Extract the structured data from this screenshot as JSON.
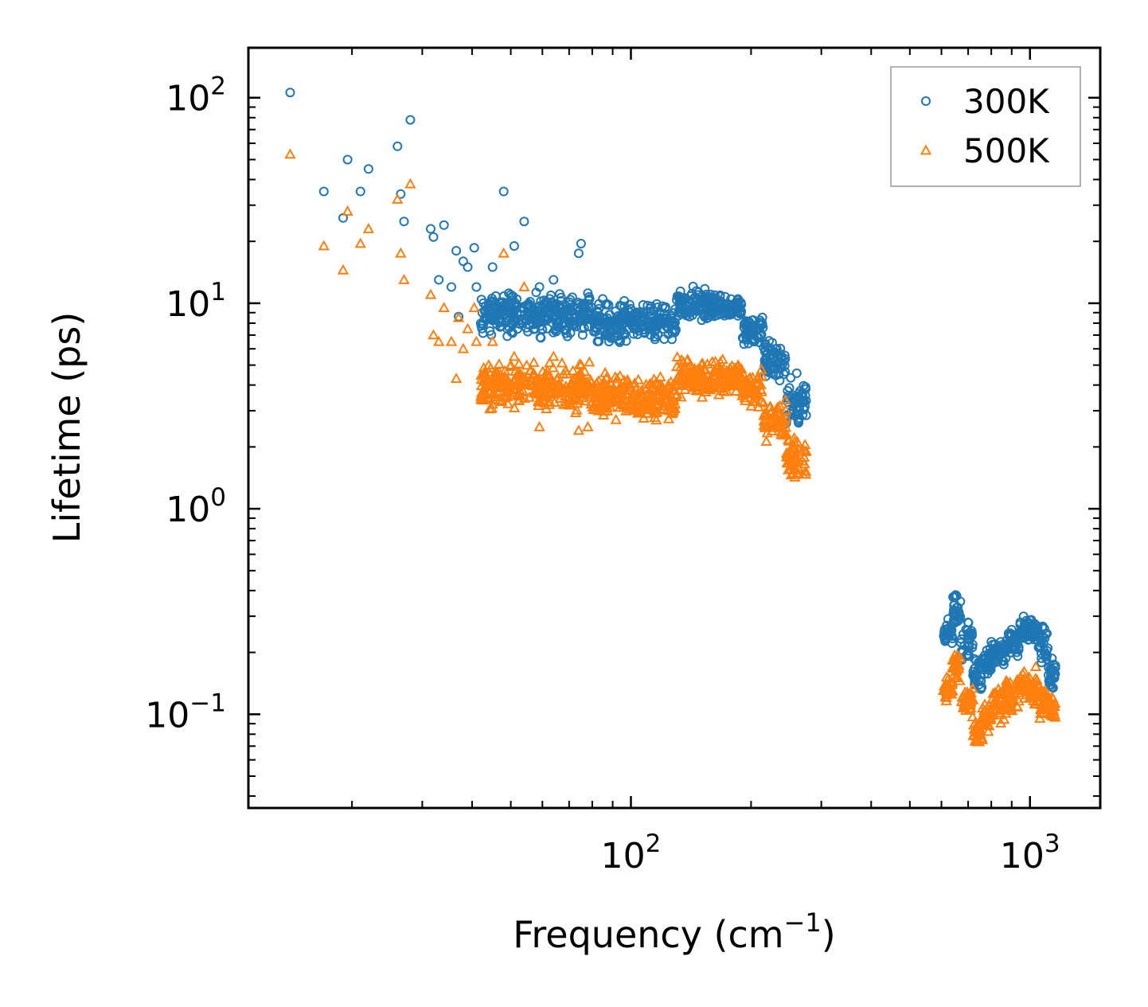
{
  "chart_data": {
    "type": "scatter",
    "title": "",
    "xlabel": "Frequency (cm",
    "xlabel_sup": "−1",
    "xlabel_end": ")",
    "ylabel": "Lifetime (ps)",
    "xscale": "log",
    "yscale": "log",
    "xlim": [
      11,
      1500
    ],
    "ylim": [
      0.035,
      175
    ],
    "x_ticks": [
      {
        "value": 100,
        "base": "10",
        "exp": "2"
      },
      {
        "value": 1000,
        "base": "10",
        "exp": "3"
      }
    ],
    "y_ticks": [
      {
        "value": 0.1,
        "base": "10",
        "exp": "−1"
      },
      {
        "value": 1,
        "base": "10",
        "exp": "0"
      },
      {
        "value": 10,
        "base": "10",
        "exp": "1"
      },
      {
        "value": 100,
        "base": "10",
        "exp": "2"
      }
    ],
    "legend_position": "top-right",
    "colors": {
      "300K": "#1f77b4",
      "500K": "#ff7f0e"
    },
    "series": [
      {
        "name": "300K",
        "marker": "circle",
        "points": [
          [
            14,
            106
          ],
          [
            17,
            35
          ],
          [
            19,
            26
          ],
          [
            19.5,
            50
          ],
          [
            21,
            35
          ],
          [
            22,
            45
          ],
          [
            26,
            58
          ],
          [
            26.5,
            34
          ],
          [
            27,
            25
          ],
          [
            28,
            78
          ],
          [
            31.5,
            23
          ],
          [
            32,
            21
          ],
          [
            33,
            13
          ],
          [
            34,
            24
          ],
          [
            35.5,
            12
          ],
          [
            36.5,
            18
          ],
          [
            37,
            8.6
          ],
          [
            38,
            16
          ],
          [
            39,
            15
          ],
          [
            40.5,
            18.6
          ],
          [
            41,
            12
          ],
          [
            44,
            10
          ],
          [
            45,
            15
          ],
          [
            46,
            9.5
          ],
          [
            48,
            35
          ],
          [
            49,
            7.5
          ],
          [
            50,
            11
          ],
          [
            51,
            19
          ],
          [
            52,
            7.5
          ],
          [
            54,
            25
          ],
          [
            59,
            12
          ],
          [
            64,
            13
          ],
          [
            74,
            17.5
          ],
          [
            75,
            19.5
          ],
          [
            78,
            11.2
          ],
          [
            85,
            10.5
          ]
        ],
        "bands": [
          {
            "x0": 42,
            "x1": 80,
            "lo": 6.5,
            "hi": 12
          },
          {
            "x0": 80,
            "x1": 100,
            "lo": 6,
            "hi": 11
          },
          {
            "x0": 100,
            "x1": 130,
            "lo": 6.2,
            "hi": 10.5
          },
          {
            "x0": 130,
            "x1": 160,
            "lo": 7.5,
            "hi": 12.5
          },
          {
            "x0": 160,
            "x1": 190,
            "lo": 7.8,
            "hi": 11.5
          },
          {
            "x0": 190,
            "x1": 215,
            "lo": 5.8,
            "hi": 9.2
          },
          {
            "x0": 215,
            "x1": 245,
            "lo": 3.8,
            "hi": 7.2
          },
          {
            "x0": 245,
            "x1": 275,
            "lo": 2.2,
            "hi": 4.8
          },
          {
            "x0": 607,
            "x1": 640,
            "lo": 0.2,
            "hi": 0.3
          },
          {
            "x0": 640,
            "x1": 670,
            "lo": 0.24,
            "hi": 0.44
          },
          {
            "x0": 670,
            "x1": 720,
            "lo": 0.17,
            "hi": 0.3
          },
          {
            "x0": 720,
            "x1": 760,
            "lo": 0.12,
            "hi": 0.2
          },
          {
            "x0": 760,
            "x1": 800,
            "lo": 0.14,
            "hi": 0.23
          },
          {
            "x0": 800,
            "x1": 870,
            "lo": 0.16,
            "hi": 0.26
          },
          {
            "x0": 870,
            "x1": 940,
            "lo": 0.18,
            "hi": 0.28
          },
          {
            "x0": 940,
            "x1": 1050,
            "lo": 0.2,
            "hi": 0.32
          },
          {
            "x0": 1050,
            "x1": 1110,
            "lo": 0.16,
            "hi": 0.3
          },
          {
            "x0": 1110,
            "x1": 1160,
            "lo": 0.12,
            "hi": 0.2
          }
        ]
      },
      {
        "name": "500K",
        "marker": "triangle",
        "points": [
          [
            14,
            53
          ],
          [
            17,
            19
          ],
          [
            19,
            14.5
          ],
          [
            19.5,
            28
          ],
          [
            21,
            19.5
          ],
          [
            22,
            23
          ],
          [
            26,
            32
          ],
          [
            26.5,
            17.5
          ],
          [
            27,
            13
          ],
          [
            28,
            38
          ],
          [
            31.5,
            11
          ],
          [
            32,
            7
          ],
          [
            33,
            6.5
          ],
          [
            34,
            9.5
          ],
          [
            35.5,
            6.5
          ],
          [
            36.5,
            4.3
          ],
          [
            37,
            8.5
          ],
          [
            38,
            6
          ],
          [
            39,
            7.5
          ],
          [
            40.5,
            9.5
          ],
          [
            41,
            6.5
          ],
          [
            44,
            5
          ],
          [
            45,
            6.5
          ],
          [
            46,
            3.5
          ],
          [
            48,
            17.5
          ],
          [
            49,
            3.5
          ],
          [
            50,
            5
          ],
          [
            51,
            5.5
          ],
          [
            52,
            4
          ],
          [
            54,
            12
          ],
          [
            59,
            2.5
          ],
          [
            64,
            5.5
          ],
          [
            74,
            2.4
          ],
          [
            75,
            5
          ],
          [
            78,
            2.5
          ],
          [
            85,
            3.2
          ]
        ],
        "bands": [
          {
            "x0": 42,
            "x1": 80,
            "lo": 2.8,
            "hi": 5.5
          },
          {
            "x0": 80,
            "x1": 100,
            "lo": 2.6,
            "hi": 5
          },
          {
            "x0": 100,
            "x1": 130,
            "lo": 2.5,
            "hi": 4.8
          },
          {
            "x0": 130,
            "x1": 160,
            "lo": 3.2,
            "hi": 5.8
          },
          {
            "x0": 160,
            "x1": 190,
            "lo": 3.4,
            "hi": 5.5
          },
          {
            "x0": 190,
            "x1": 215,
            "lo": 2.8,
            "hi": 5
          },
          {
            "x0": 215,
            "x1": 245,
            "lo": 2,
            "hi": 3.6
          },
          {
            "x0": 245,
            "x1": 275,
            "lo": 1.3,
            "hi": 2.4
          },
          {
            "x0": 607,
            "x1": 640,
            "lo": 0.11,
            "hi": 0.16
          },
          {
            "x0": 640,
            "x1": 670,
            "lo": 0.13,
            "hi": 0.22
          },
          {
            "x0": 670,
            "x1": 720,
            "lo": 0.09,
            "hi": 0.15
          },
          {
            "x0": 720,
            "x1": 760,
            "lo": 0.065,
            "hi": 0.1
          },
          {
            "x0": 760,
            "x1": 800,
            "lo": 0.08,
            "hi": 0.12
          },
          {
            "x0": 800,
            "x1": 870,
            "lo": 0.085,
            "hi": 0.15
          },
          {
            "x0": 870,
            "x1": 940,
            "lo": 0.09,
            "hi": 0.17
          },
          {
            "x0": 940,
            "x1": 1050,
            "lo": 0.1,
            "hi": 0.18
          },
          {
            "x0": 1050,
            "x1": 1110,
            "lo": 0.085,
            "hi": 0.15
          },
          {
            "x0": 1110,
            "x1": 1160,
            "lo": 0.09,
            "hi": 0.13
          }
        ]
      }
    ]
  }
}
